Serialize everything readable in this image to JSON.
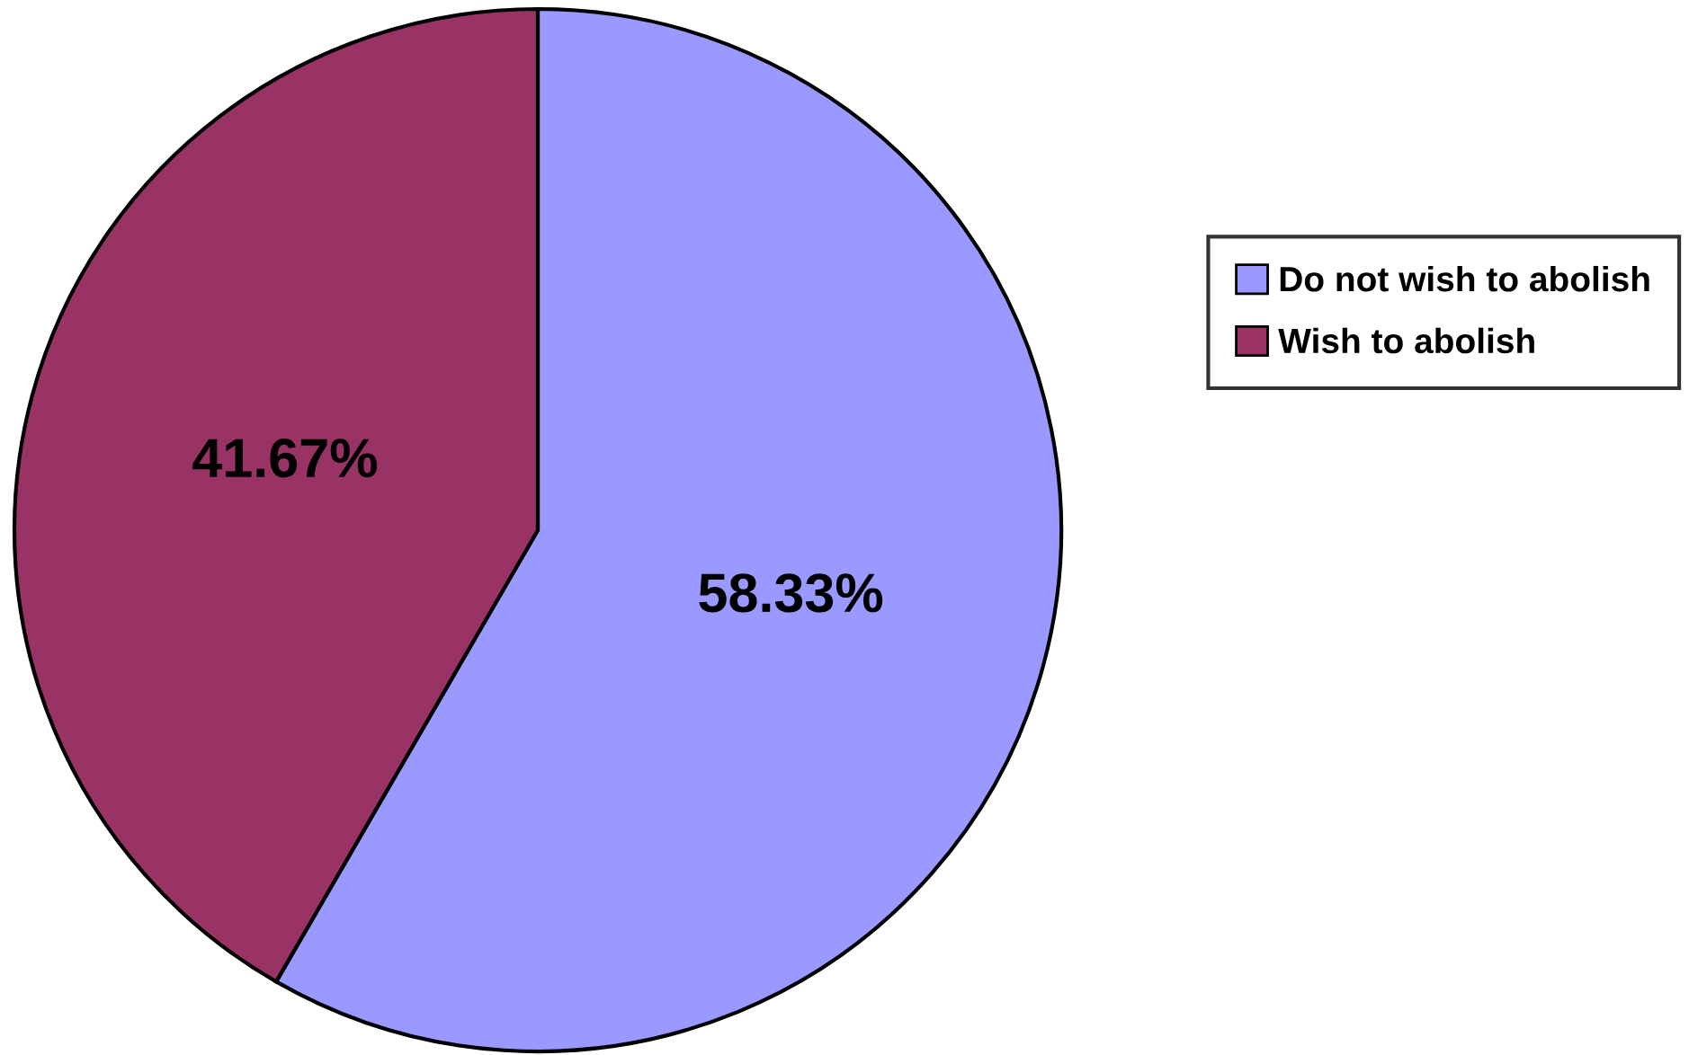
{
  "chart_data": {
    "type": "pie",
    "categories": [
      "Do not wish to abolish",
      "Wish to abolish"
    ],
    "values": [
      58.33,
      41.67
    ],
    "colors": [
      "#9999ff",
      "#993366"
    ],
    "value_labels": [
      "58.33%",
      "41.67%"
    ],
    "legend": "right"
  }
}
